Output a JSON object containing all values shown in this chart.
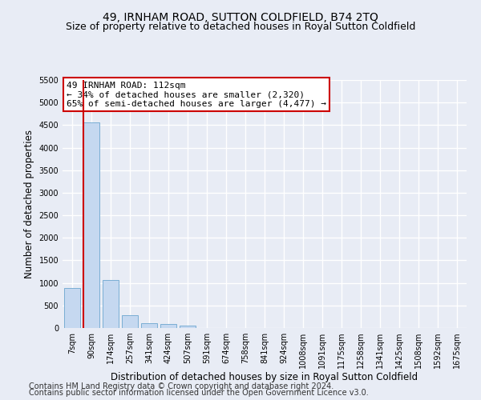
{
  "title": "49, IRNHAM ROAD, SUTTON COLDFIELD, B74 2TQ",
  "subtitle": "Size of property relative to detached houses in Royal Sutton Coldfield",
  "xlabel": "Distribution of detached houses by size in Royal Sutton Coldfield",
  "ylabel": "Number of detached properties",
  "categories": [
    "7sqm",
    "90sqm",
    "174sqm",
    "257sqm",
    "341sqm",
    "424sqm",
    "507sqm",
    "591sqm",
    "674sqm",
    "758sqm",
    "841sqm",
    "924sqm",
    "1008sqm",
    "1091sqm",
    "1175sqm",
    "1258sqm",
    "1341sqm",
    "1425sqm",
    "1508sqm",
    "1592sqm",
    "1675sqm"
  ],
  "values": [
    880,
    4560,
    1060,
    290,
    100,
    95,
    60,
    0,
    0,
    0,
    0,
    0,
    0,
    0,
    0,
    0,
    0,
    0,
    0,
    0,
    0
  ],
  "bar_color": "#c5d8f0",
  "bar_edge_color": "#7aaed4",
  "vline_x": 1.0,
  "vline_color": "#cc0000",
  "annotation_text": "49 IRNHAM ROAD: 112sqm\n← 34% of detached houses are smaller (2,320)\n65% of semi-detached houses are larger (4,477) →",
  "annotation_box_color": "#ffffff",
  "annotation_box_edge": "#cc0000",
  "ylim": [
    0,
    5500
  ],
  "yticks": [
    0,
    500,
    1000,
    1500,
    2000,
    2500,
    3000,
    3500,
    4000,
    4500,
    5000,
    5500
  ],
  "footer1": "Contains HM Land Registry data © Crown copyright and database right 2024.",
  "footer2": "Contains public sector information licensed under the Open Government Licence v3.0.",
  "bg_color": "#e8ecf5",
  "plot_bg_color": "#e8ecf5",
  "grid_color": "#ffffff",
  "title_fontsize": 10,
  "subtitle_fontsize": 9,
  "xlabel_fontsize": 8.5,
  "ylabel_fontsize": 8.5,
  "tick_fontsize": 7,
  "footer_fontsize": 7,
  "annot_fontsize": 8
}
